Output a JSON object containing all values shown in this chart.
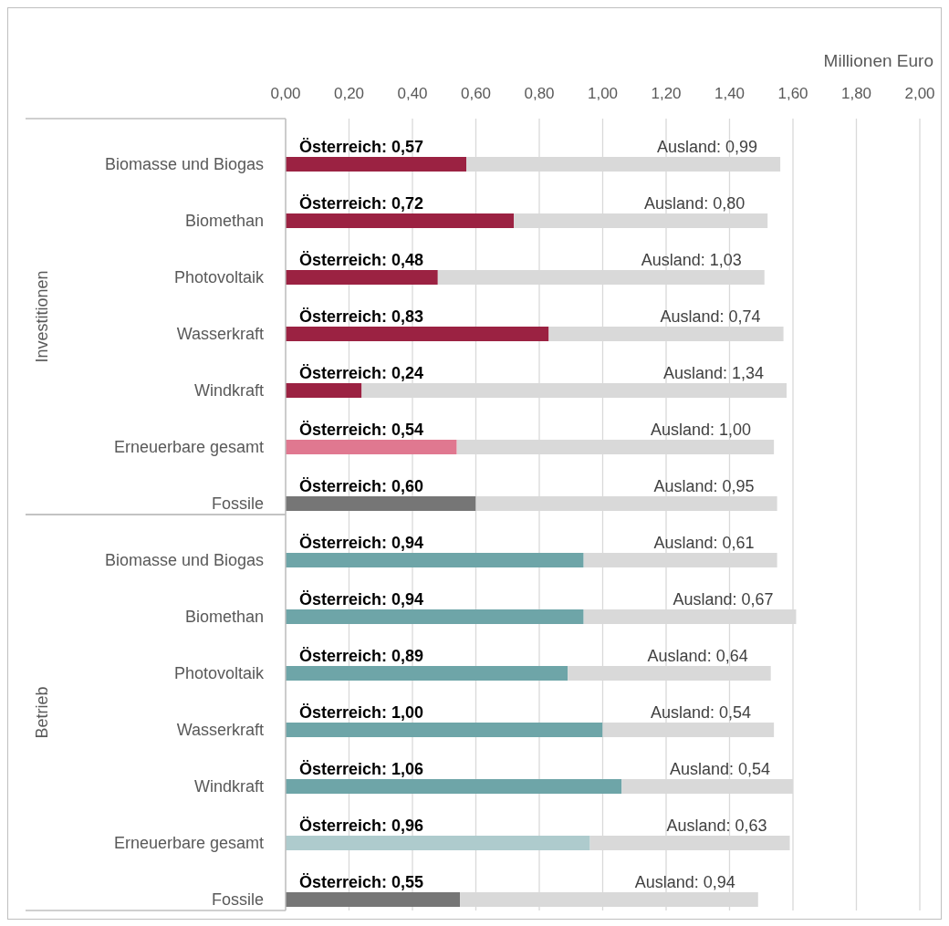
{
  "chart_data": {
    "type": "bar",
    "orientation": "horizontal",
    "stacked": true,
    "xlabel": "Millionen Euro",
    "categories": [
      "Biomasse und Biogas",
      "Biomethan",
      "Photovoltaik",
      "Wasserkraft",
      "Windkraft",
      "Erneuerbare gesamt",
      "Fossile",
      "Biomasse und Biogas",
      "Biomethan",
      "Photovoltaik",
      "Wasserkraft",
      "Windkraft",
      "Erneuerbare gesamt",
      "Fossile"
    ],
    "annotations": [
      "Investitionen",
      "Betrieb"
    ],
    "series": [
      {
        "values": [
          0.57,
          0.72,
          0.48,
          0.83,
          0.24,
          0.54,
          0.6,
          0.94,
          0.94,
          0.89,
          1.0,
          1.06,
          0.96,
          0.55
        ],
        "colors": [
          "#9b2242",
          "#9b2242",
          "#9b2242",
          "#9b2242",
          "#9b2242",
          "#e07890",
          "#767676",
          "#6ea5a8",
          "#6ea5a8",
          "#6ea5a8",
          "#6ea5a8",
          "#6ea5a8",
          "#aecbcd",
          "#767676"
        ],
        "value_labels": [
          "Österreich: 0,57",
          "Österreich: 0,72",
          "Österreich: 0,48",
          "Österreich: 0,83",
          "Österreich: 0,24",
          "Österreich: 0,54",
          "Österreich: 0,60",
          "Österreich: 0,94",
          "Österreich: 0,94",
          "Österreich: 0,89",
          "Österreich: 1,00",
          "Österreich: 1,06",
          "Österreich: 0,96",
          "Österreich: 0,55"
        ]
      },
      {
        "color": "#d9d9d9",
        "values": [
          0.99,
          0.8,
          1.03,
          0.74,
          1.34,
          1.0,
          0.95,
          0.61,
          0.67,
          0.64,
          0.54,
          0.54,
          0.63,
          0.94
        ],
        "value_labels": [
          "Ausland: 0,99",
          "Ausland: 0,80",
          "Ausland: 1,03",
          "Ausland: 0,74",
          "Ausland: 1,34",
          "Ausland: 1,00",
          "Ausland: 0,95",
          "Ausland: 0,61",
          "Ausland: 0,67",
          "Ausland: 0,64",
          "Ausland: 0,54",
          "Ausland: 0,54",
          "Ausland: 0,63",
          "Ausland: 0,94"
        ]
      }
    ],
    "xlim": [
      0,
      2
    ],
    "xticks": [
      {
        "value": 0,
        "label": "0,00"
      },
      {
        "value": 0.2,
        "label": "0,20"
      },
      {
        "value": 0.4,
        "label": "0,40"
      },
      {
        "value": 0.6,
        "label": "0,60"
      },
      {
        "value": 0.8,
        "label": "0,80"
      },
      {
        "value": 1,
        "label": "1,00"
      },
      {
        "value": 1.2,
        "label": "1,20"
      },
      {
        "value": 1.4,
        "label": "1,40"
      },
      {
        "value": 1.6,
        "label": "1,60"
      },
      {
        "value": 1.8,
        "label": "1,80"
      },
      {
        "value": 2,
        "label": "2,00"
      }
    ],
    "grid": "x"
  }
}
